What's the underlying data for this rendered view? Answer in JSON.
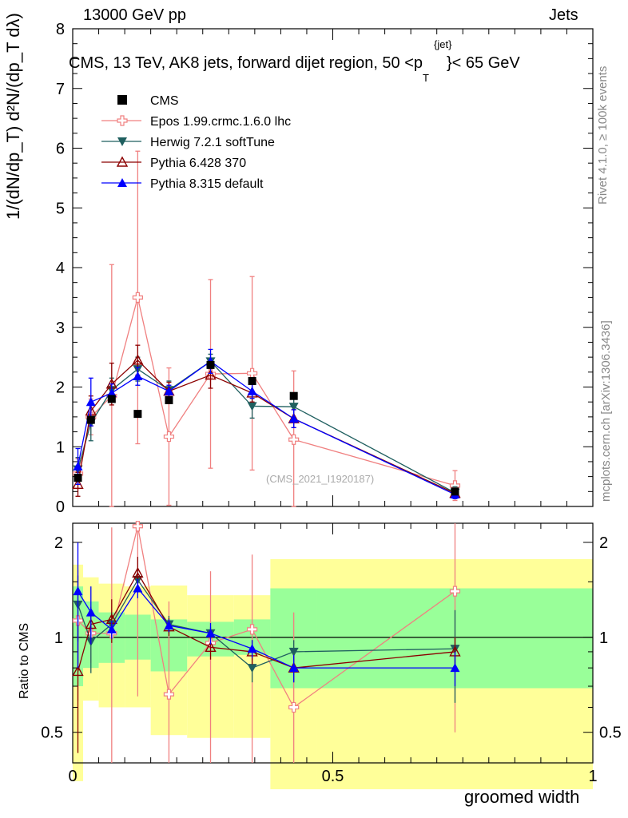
{
  "header": {
    "left": "13000 GeV pp",
    "right": "Jets",
    "title_main": "CMS, 13 TeV, AK8 jets, forward dijet region, 50 <p",
    "title_sup": "{jet}",
    "title_sub": "T",
    "title_end": "}< 65 GeV"
  },
  "side": {
    "rivet": "Rivet 4.1.0, ≥ 100k events",
    "mcplots": "mcplots.cern.ch [arXiv:1306.3436]"
  },
  "watermark": "(CMS_2021_I1920187)",
  "colors": {
    "cms": "#000000",
    "epos": "#f08080",
    "herwig": "#1f5f5f",
    "p6": "#8b0000",
    "p8": "#0000ff",
    "band1": "#99ff99",
    "band2": "#ffff99"
  },
  "chart_data": {
    "type": "scatter",
    "title": "CMS, 13 TeV, AK8 jets, forward dijet region, 50 <p_T^{jet}< 65 GeV",
    "xlabel": "groomed width",
    "ylabel": "1/(dN/dp_T) d²N/(dp_T dλ)",
    "xlim": [
      0,
      1
    ],
    "ylim": [
      0,
      8
    ],
    "x_ticks": [
      "0",
      "0.5",
      "1"
    ],
    "y_ticks": [
      "0",
      "1",
      "2",
      "3",
      "4",
      "5",
      "6",
      "7",
      "8"
    ],
    "x": [
      0.01,
      0.035,
      0.075,
      0.125,
      0.185,
      0.265,
      0.345,
      0.425,
      0.735
    ],
    "bin_edges": [
      0,
      0.02,
      0.05,
      0.1,
      0.15,
      0.22,
      0.31,
      0.38,
      0.47,
      1.0
    ],
    "cms": {
      "name": "CMS",
      "values": [
        0.48,
        1.45,
        1.8,
        1.55,
        1.78,
        2.37,
        2.1,
        1.85,
        0.25
      ]
    },
    "series": [
      {
        "name": "Epos 1.99.crmc.1.6.0 lhc",
        "key": "epos",
        "values": [
          0.55,
          1.5,
          1.85,
          3.5,
          1.17,
          2.22,
          2.23,
          1.12,
          0.35
        ],
        "err": [
          0.25,
          0.3,
          2.2,
          2.45,
          1.15,
          1.58,
          1.62,
          1.15,
          0.25
        ],
        "marker": "cross-open"
      },
      {
        "name": "Herwig 7.2.1 softTune",
        "key": "herwig",
        "values": [
          0.62,
          1.4,
          1.95,
          2.3,
          1.95,
          2.43,
          1.68,
          1.67,
          0.23
        ],
        "err": [
          0.2,
          0.3,
          0.2,
          0.2,
          0.15,
          0.12,
          0.2,
          0.18,
          0.1
        ],
        "marker": "triangle-down-filled"
      },
      {
        "name": "Pythia 6.428 370",
        "key": "p6",
        "values": [
          0.37,
          1.6,
          2.05,
          2.45,
          1.93,
          2.2,
          1.9,
          1.47,
          0.22
        ],
        "err": [
          0.2,
          0.25,
          0.35,
          0.25,
          0.15,
          0.22,
          0.15,
          0.15,
          0.08
        ],
        "marker": "triangle-up-open"
      },
      {
        "name": "Pythia 8.315 default",
        "key": "p8",
        "values": [
          0.67,
          1.75,
          1.9,
          2.18,
          1.93,
          2.43,
          1.93,
          1.47,
          0.2
        ],
        "err": [
          0.3,
          0.4,
          0.15,
          0.15,
          0.1,
          0.2,
          0.12,
          0.15,
          0.07
        ],
        "marker": "triangle-up-filled"
      }
    ],
    "ratio": {
      "ylabel": "Ratio to CMS",
      "yscale": "log",
      "ylim": [
        0.4,
        2.3
      ],
      "y_ticks": [
        "0.5",
        "1",
        "2"
      ],
      "band1": [
        [
          0.7,
          1.45
        ],
        [
          0.8,
          1.3
        ],
        [
          0.83,
          1.2
        ],
        [
          0.85,
          1.18
        ],
        [
          0.78,
          1.14
        ],
        [
          0.87,
          1.12
        ],
        [
          0.88,
          1.14
        ],
        [
          0.69,
          1.43
        ],
        [
          0.69,
          1.43
        ]
      ],
      "band2": [
        [
          0.35,
          1.7
        ],
        [
          0.63,
          1.55
        ],
        [
          0.6,
          1.48
        ],
        [
          0.6,
          1.45
        ],
        [
          0.49,
          1.46
        ],
        [
          0.48,
          1.36
        ],
        [
          0.48,
          1.36
        ],
        [
          0.33,
          1.77
        ],
        [
          0.33,
          1.77
        ]
      ],
      "series": [
        {
          "key": "epos",
          "values": [
            1.13,
            1.03,
            1.03,
            2.25,
            0.66,
            0.96,
            1.06,
            0.6,
            1.4
          ],
          "err": [
            0.5,
            0.2,
            1.2,
            1.6,
            0.64,
            0.66,
            0.77,
            0.6,
            0.9
          ]
        },
        {
          "key": "herwig",
          "values": [
            1.27,
            0.97,
            1.1,
            1.52,
            1.1,
            1.03,
            0.8,
            0.9,
            0.92
          ],
          "err": [
            0.3,
            0.2,
            0.1,
            0.12,
            0.07,
            0.05,
            0.08,
            0.08,
            0.3
          ]
        },
        {
          "key": "p6",
          "values": [
            0.78,
            1.1,
            1.14,
            1.6,
            1.08,
            0.93,
            0.9,
            0.8,
            0.9
          ],
          "err": [
            0.35,
            0.15,
            0.18,
            0.2,
            0.07,
            0.08,
            0.08,
            0.08,
            0.1
          ]
        },
        {
          "key": "p8",
          "values": [
            1.4,
            1.2,
            1.06,
            1.43,
            1.09,
            1.03,
            0.92,
            0.8,
            0.8
          ],
          "err": [
            0.6,
            0.25,
            0.07,
            0.1,
            0.05,
            0.08,
            0.06,
            0.08,
            0.1
          ]
        }
      ]
    }
  }
}
